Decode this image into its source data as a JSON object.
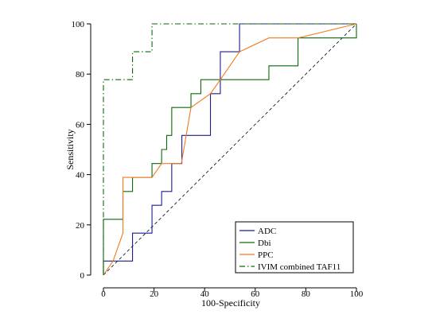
{
  "chart_data": {
    "type": "line",
    "title": "",
    "xlabel": "100-Specificity",
    "ylabel": "Sensitivity",
    "xlim": [
      0,
      100
    ],
    "ylim": [
      0,
      100
    ],
    "xticks": [
      0,
      20,
      40,
      60,
      80,
      100
    ],
    "yticks": [
      0,
      20,
      40,
      60,
      80,
      100
    ],
    "grid": false,
    "legend_position": "bottom-right",
    "reference_line": {
      "style": "dashed",
      "color": "#000000",
      "from": [
        0,
        0
      ],
      "to": [
        100,
        100
      ]
    },
    "series": [
      {
        "name": "ADC",
        "color": "#1c1c8c",
        "style": "solid",
        "step": true,
        "points": [
          [
            0,
            0
          ],
          [
            0,
            5.6
          ],
          [
            3,
            5.6
          ],
          [
            11.5,
            5.6
          ],
          [
            11.5,
            16.7
          ],
          [
            19.2,
            16.7
          ],
          [
            19.2,
            27.8
          ],
          [
            23,
            27.8
          ],
          [
            23,
            33.3
          ],
          [
            27,
            33.3
          ],
          [
            27,
            44.4
          ],
          [
            31,
            44.4
          ],
          [
            31,
            55.6
          ],
          [
            42.3,
            55.6
          ],
          [
            42.3,
            72.2
          ],
          [
            46.2,
            72.2
          ],
          [
            46.2,
            88.9
          ],
          [
            53.8,
            88.9
          ],
          [
            53.8,
            100
          ],
          [
            100,
            100
          ]
        ]
      },
      {
        "name": "Dbi",
        "color": "#0a6a0a",
        "style": "solid",
        "step": true,
        "points": [
          [
            0,
            0
          ],
          [
            0,
            22.2
          ],
          [
            7.7,
            22.2
          ],
          [
            7.7,
            33.3
          ],
          [
            11.5,
            33.3
          ],
          [
            11.5,
            38.9
          ],
          [
            19.2,
            38.9
          ],
          [
            19.2,
            44.4
          ],
          [
            23,
            44.4
          ],
          [
            23,
            50
          ],
          [
            25,
            50
          ],
          [
            25,
            55.6
          ],
          [
            27,
            55.6
          ],
          [
            27,
            66.7
          ],
          [
            34.6,
            66.7
          ],
          [
            34.6,
            72.2
          ],
          [
            38.5,
            72.2
          ],
          [
            38.5,
            77.8
          ],
          [
            65.4,
            77.8
          ],
          [
            65.4,
            83.3
          ],
          [
            76.9,
            83.3
          ],
          [
            76.9,
            94.4
          ],
          [
            100,
            94.4
          ],
          [
            100,
            100
          ]
        ]
      },
      {
        "name": "PPC",
        "color": "#f07b20",
        "style": "solid",
        "step": false,
        "points": [
          [
            0,
            0
          ],
          [
            3.8,
            5.6
          ],
          [
            7.7,
            16.7
          ],
          [
            7.7,
            38.9
          ],
          [
            19.2,
            38.9
          ],
          [
            23,
            44.4
          ],
          [
            30.8,
            44.4
          ],
          [
            34.6,
            66.7
          ],
          [
            42.3,
            72.2
          ],
          [
            46.2,
            77.8
          ],
          [
            53.8,
            88.9
          ],
          [
            65.4,
            94.4
          ],
          [
            76.9,
            94.4
          ],
          [
            100,
            100
          ]
        ]
      },
      {
        "name": "IVIM combined TAF11",
        "color": "#0a6a0a",
        "style": "dashdot",
        "step": true,
        "points": [
          [
            0,
            0
          ],
          [
            0,
            77.8
          ],
          [
            11.5,
            77.8
          ],
          [
            11.5,
            88.9
          ],
          [
            19.2,
            88.9
          ],
          [
            19.2,
            100
          ],
          [
            100,
            100
          ]
        ]
      }
    ]
  }
}
